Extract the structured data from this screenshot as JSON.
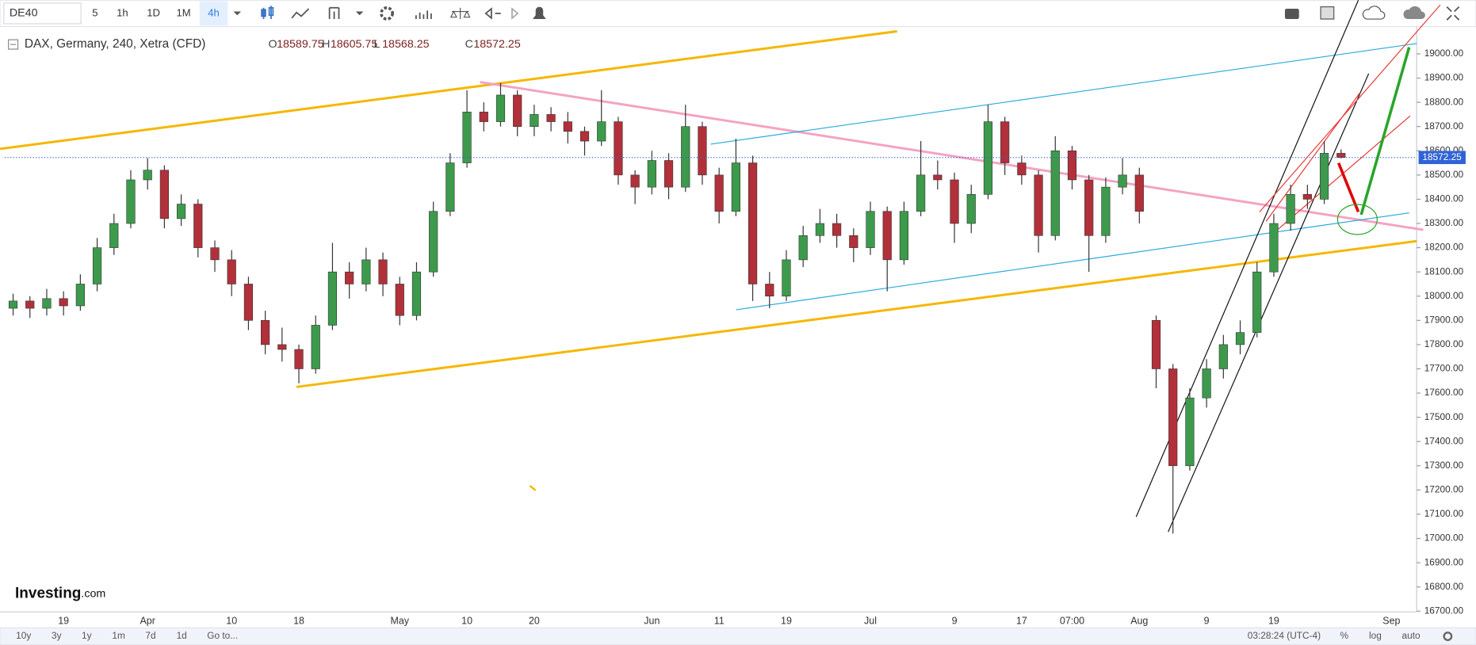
{
  "toolbar": {
    "symbol": "DE40",
    "intervals": [
      "5",
      "1h",
      "1D",
      "1M",
      "4h"
    ],
    "active_interval": 4
  },
  "chart_data": {
    "type": "candlestick",
    "title": "DAX, Germany, 240, Xetra (CFD)",
    "ohlc_labels": [
      "O",
      "H",
      "L",
      "C"
    ],
    "up_color": "#3d9a4c",
    "down_color": "#b1303a",
    "last_price_color": "#2f63d6",
    "categories": [
      null,
      null,
      null,
      "19",
      null,
      null,
      null,
      null,
      "Apr",
      null,
      null,
      null,
      null,
      "10",
      null,
      null,
      null,
      "18",
      null,
      null,
      null,
      null,
      null,
      "May",
      null,
      null,
      null,
      "10",
      null,
      null,
      null,
      "20",
      null,
      null,
      null,
      null,
      null,
      null,
      "Jun",
      null,
      null,
      null,
      "11",
      null,
      null,
      null,
      "19",
      null,
      null,
      null,
      null,
      "Jul",
      null,
      null,
      null,
      null,
      "9",
      null,
      null,
      null,
      "17",
      null,
      null,
      "07:00",
      null,
      null,
      null,
      "Aug",
      null,
      null,
      null,
      "9",
      null,
      null,
      null,
      "19",
      null,
      null,
      null,
      null,
      null,
      null,
      "Sep",
      null
    ],
    "open": [
      17950,
      17980,
      17950,
      17990,
      17960,
      18050,
      18200,
      18300,
      18480,
      18520,
      18320,
      18380,
      18200,
      18150,
      18050,
      17900,
      17800,
      17780,
      17700,
      17880,
      18100,
      18050,
      18150,
      18050,
      17920,
      18100,
      18350,
      18550,
      18760,
      18720,
      18830,
      18700,
      18750,
      18720,
      18680,
      18640,
      18720,
      18500,
      18450,
      18560,
      18450,
      18700,
      18500,
      18350,
      18550,
      18050,
      18000,
      18150,
      18250,
      18300,
      18250,
      18200,
      18350,
      18150,
      18350,
      18500,
      18480,
      18300,
      18420,
      18720,
      18550,
      18500,
      18250,
      18600,
      18480,
      18250,
      18450,
      18500,
      17900,
      17700,
      17300,
      17580,
      17700,
      17800,
      17850,
      18100,
      18300,
      18420,
      18400,
      18589.75,
      null,
      null,
      null,
      null
    ],
    "high": [
      18010,
      18000,
      18030,
      18020,
      18090,
      18240,
      18340,
      18520,
      18570,
      18540,
      18420,
      18400,
      18230,
      18190,
      18080,
      17940,
      17870,
      17800,
      17920,
      18220,
      18140,
      18200,
      18180,
      18080,
      18140,
      18390,
      18590,
      18850,
      18800,
      18880,
      18850,
      18790,
      18780,
      18760,
      18700,
      18850,
      18740,
      18520,
      18600,
      18590,
      18790,
      18720,
      18530,
      18650,
      18580,
      18100,
      18190,
      18290,
      18360,
      18340,
      18280,
      18390,
      18370,
      18390,
      18640,
      18560,
      18510,
      18460,
      18790,
      18740,
      18580,
      18520,
      18660,
      18620,
      18500,
      18490,
      18570,
      18530,
      17920,
      17720,
      17620,
      17740,
      17840,
      17900,
      18140,
      18340,
      18460,
      18460,
      18640,
      18605.75,
      null,
      null,
      null,
      null
    ],
    "low": [
      17920,
      17910,
      17920,
      17920,
      17940,
      18020,
      18170,
      18280,
      18440,
      18280,
      18290,
      18160,
      18100,
      18000,
      17860,
      17760,
      17730,
      17640,
      17680,
      17860,
      17990,
      18020,
      18000,
      17880,
      17900,
      18080,
      18330,
      18530,
      18680,
      18700,
      18660,
      18660,
      18680,
      18630,
      18580,
      18620,
      18460,
      18380,
      18420,
      18400,
      18430,
      18460,
      18300,
      18330,
      17980,
      17950,
      17980,
      18120,
      18220,
      18200,
      18140,
      18170,
      18020,
      18130,
      18330,
      18440,
      18220,
      18260,
      18400,
      18500,
      18460,
      18180,
      18230,
      18440,
      18100,
      18220,
      18420,
      18300,
      17620,
      17020,
      17280,
      17540,
      17660,
      17760,
      17830,
      18080,
      18270,
      18360,
      18380,
      18568.25,
      null,
      null,
      null,
      null
    ],
    "close": [
      17980,
      17950,
      17990,
      17960,
      18050,
      18200,
      18300,
      18480,
      18520,
      18320,
      18380,
      18200,
      18150,
      18050,
      17900,
      17800,
      17780,
      17700,
      17880,
      18100,
      18050,
      18150,
      18050,
      17920,
      18100,
      18350,
      18550,
      18760,
      18720,
      18830,
      18700,
      18750,
      18720,
      18680,
      18640,
      18720,
      18500,
      18450,
      18560,
      18450,
      18700,
      18500,
      18350,
      18550,
      18050,
      18000,
      18150,
      18250,
      18300,
      18250,
      18200,
      18350,
      18150,
      18350,
      18500,
      18480,
      18300,
      18420,
      18720,
      18550,
      18500,
      18250,
      18600,
      18480,
      18250,
      18450,
      18500,
      18350,
      17700,
      17300,
      17580,
      17700,
      17800,
      17850,
      18100,
      18300,
      18420,
      18400,
      18589.75,
      18572.25,
      null,
      null,
      null,
      null
    ],
    "ylim": [
      16700,
      19100
    ],
    "yticks": [
      {
        "value": 16700,
        "label": "16700.00"
      },
      {
        "value": 16800,
        "label": "16800.00"
      },
      {
        "value": 16900,
        "label": "16900.00"
      },
      {
        "value": 17000,
        "label": "17000.00"
      },
      {
        "value": 17100,
        "label": "17100.00"
      },
      {
        "value": 17200,
        "label": "17200.00"
      },
      {
        "value": 17300,
        "label": "17300.00"
      },
      {
        "value": 17400,
        "label": "17400.00"
      },
      {
        "value": 17500,
        "label": "17500.00"
      },
      {
        "value": 17600,
        "label": "17600.00"
      },
      {
        "value": 17700,
        "label": "17700.00"
      },
      {
        "value": 17800,
        "label": "17800.00"
      },
      {
        "value": 17900,
        "label": "17900.00"
      },
      {
        "value": 18000,
        "label": "18000.00"
      },
      {
        "value": 18100,
        "label": "18100.00"
      },
      {
        "value": 18200,
        "label": "18200.00"
      },
      {
        "value": 18300,
        "label": "18300.00"
      },
      {
        "value": 18400,
        "label": "18400.00"
      },
      {
        "value": 18500,
        "label": "18500.00"
      },
      {
        "value": 18600,
        "label": "18600.00"
      },
      {
        "value": 18700,
        "label": "18700.00"
      },
      {
        "value": 18800,
        "label": "18800.00"
      },
      {
        "value": 18900,
        "label": "18900.00"
      },
      {
        "value": 19000,
        "label": "19000.00"
      }
    ],
    "log_scale": false,
    "grid": false
  },
  "logo": {
    "name": "Investing",
    "suffix": ".com"
  },
  "footer": {
    "ranges": [
      "10y",
      "3y",
      "1y",
      "1m",
      "7d",
      "1d"
    ],
    "goto": "Go to...",
    "clock": "03:28:24 (UTC-4)",
    "options": [
      "%",
      "log",
      "auto"
    ]
  }
}
